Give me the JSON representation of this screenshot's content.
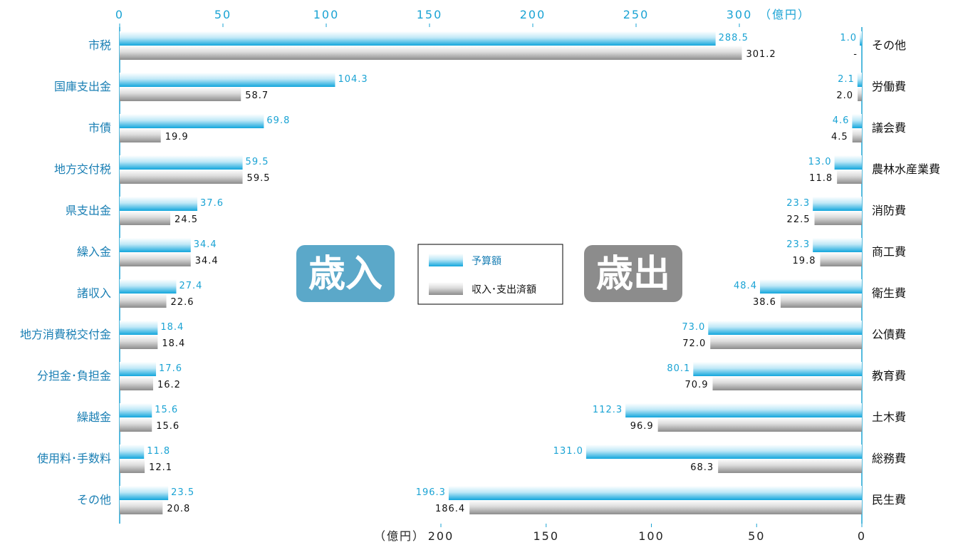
{
  "chart_data": [
    {
      "type": "bar",
      "orientation": "horizontal",
      "label": "歳入",
      "unit": "（億円）",
      "xlim": [
        0,
        300
      ],
      "ticks": [
        0,
        50,
        100,
        150,
        200,
        250,
        300
      ],
      "categories": [
        "市税",
        "国庫支出金",
        "市債",
        "地方交付税",
        "県支出金",
        "繰入金",
        "諸収入",
        "地方消費税交付金",
        "分担金･負担金",
        "繰越金",
        "使用料･手数料",
        "その他"
      ],
      "series": [
        {
          "name": "予算額",
          "values": [
            288.5,
            104.3,
            69.8,
            59.5,
            37.6,
            34.4,
            27.4,
            18.4,
            17.6,
            15.6,
            11.8,
            23.5
          ],
          "labels": [
            "288.5",
            "104.3",
            "69.8",
            "59.5",
            "37.6",
            "34.4",
            "27.4",
            "18.4",
            "17.6",
            "15.6",
            "11.8",
            "23.5"
          ]
        },
        {
          "name": "収入･支出済額",
          "values": [
            301.2,
            58.7,
            19.9,
            59.5,
            24.5,
            34.4,
            22.6,
            18.4,
            16.2,
            15.6,
            12.1,
            20.8
          ],
          "labels": [
            "301.2",
            "58.7",
            "19.9",
            "59.5",
            "24.5",
            "34.4",
            "22.6",
            "18.4",
            "16.2",
            "15.6",
            "12.1",
            "20.8"
          ]
        }
      ]
    },
    {
      "type": "bar",
      "orientation": "horizontal",
      "label": "歳出",
      "unit": "（億円）",
      "xlim": [
        200,
        0
      ],
      "ticks": [
        200,
        150,
        100,
        50,
        0
      ],
      "categories": [
        "その他",
        "労働費",
        "議会費",
        "農林水産業費",
        "消防費",
        "商工費",
        "衛生費",
        "公債費",
        "教育費",
        "土木費",
        "総務費",
        "民生費"
      ],
      "series": [
        {
          "name": "予算額",
          "values": [
            1.0,
            2.1,
            4.6,
            13.0,
            23.3,
            23.3,
            48.4,
            73.0,
            80.1,
            112.3,
            131.0,
            196.3
          ],
          "labels": [
            "1.0",
            "2.1",
            "4.6",
            "13.0",
            "23.3",
            "23.3",
            "48.4",
            "73.0",
            "80.1",
            "112.3",
            "131.0",
            "196.3"
          ]
        },
        {
          "name": "収入･支出済額",
          "values": [
            0,
            2.0,
            4.5,
            11.8,
            22.5,
            19.8,
            38.6,
            72.0,
            70.9,
            96.9,
            68.3,
            186.4
          ],
          "labels": [
            "-",
            "2.0",
            "4.5",
            "11.8",
            "22.5",
            "19.8",
            "38.6",
            "72.0",
            "70.9",
            "96.9",
            "68.3",
            "186.4"
          ]
        }
      ]
    }
  ],
  "legend": {
    "budget": "予算額",
    "actual": "収入･支出済額"
  },
  "colors": {
    "budget": "#1cb0e4",
    "actual": "#9a9a9a",
    "revenue_box": "#5ba8c9",
    "expense_box": "#8c8c8c",
    "axis": "#1aa3d4"
  }
}
